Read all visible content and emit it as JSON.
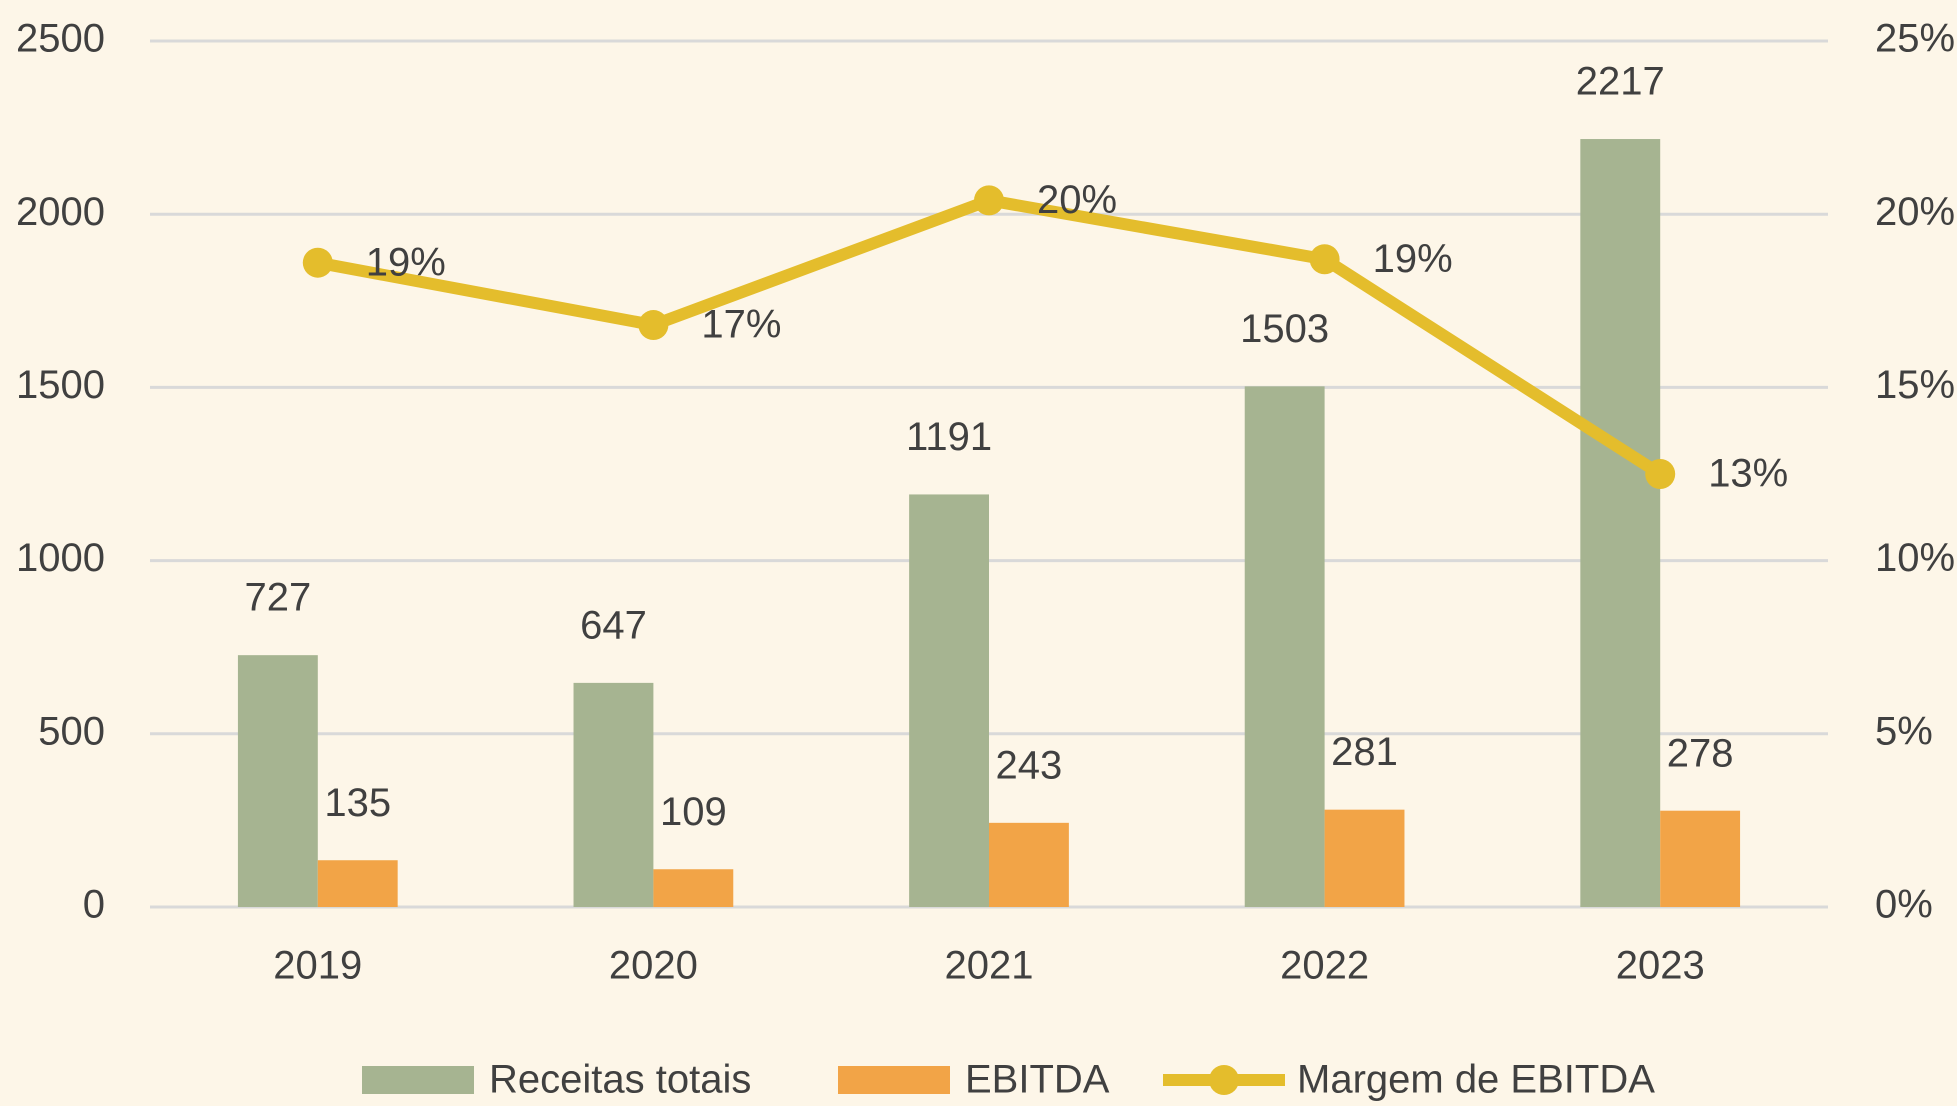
{
  "chart_data": {
    "type": "bar",
    "categories": [
      "2019",
      "2020",
      "2021",
      "2022",
      "2023"
    ],
    "series": [
      {
        "name": "Receitas totais",
        "type": "bar",
        "color": "#a6b491",
        "values": [
          727,
          647,
          1191,
          1503,
          2217
        ]
      },
      {
        "name": "EBITDA",
        "type": "bar",
        "color": "#f2a447",
        "values": [
          135,
          109,
          243,
          281,
          278
        ]
      },
      {
        "name": "Margem de EBITDA",
        "type": "line",
        "axis": "y2",
        "color": "#e4bd2c",
        "values": [
          18.6,
          16.8,
          20.4,
          18.7,
          12.5
        ],
        "value_labels": [
          "19%",
          "17%",
          "20%",
          "19%",
          "13%"
        ]
      }
    ],
    "ylim": [
      0,
      2500
    ],
    "yticks": [
      0,
      500,
      1000,
      1500,
      2000,
      2500
    ],
    "y2lim": [
      0,
      25
    ],
    "y2ticks": [
      {
        "value": 0,
        "label": "0%"
      },
      {
        "value": 5,
        "label": "5%"
      },
      {
        "value": 10,
        "label": "10%"
      },
      {
        "value": 15,
        "label": "15%"
      },
      {
        "value": 20,
        "label": "20%"
      },
      {
        "value": 25,
        "label": "25%"
      }
    ],
    "grid": true,
    "legend": "bottom"
  }
}
